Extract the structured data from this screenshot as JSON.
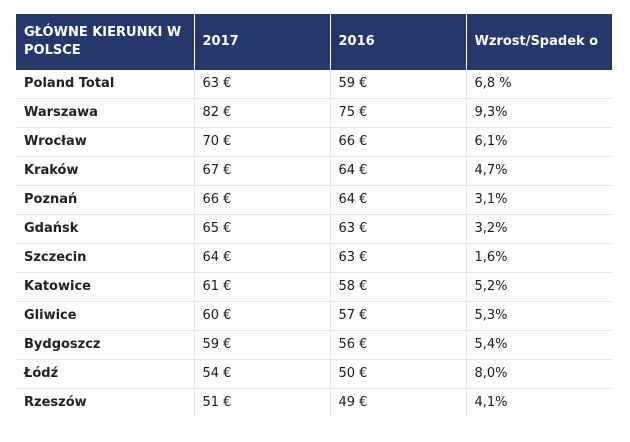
{
  "table": {
    "headers": [
      "GŁÓWNE KIERUNKI W POLSCE",
      "2017",
      "2016",
      "Wzrost/Spadek o"
    ],
    "rows": [
      [
        "Poland Total",
        "63 €",
        "59 €",
        "6,8 %"
      ],
      [
        "Warszawa",
        "82 €",
        "75 €",
        "9,3%"
      ],
      [
        "Wrocław",
        "70 €",
        "66 €",
        "6,1%"
      ],
      [
        "Kraków",
        "67 €",
        "64 €",
        "4,7%"
      ],
      [
        "Poznań",
        "66 €",
        "64 €",
        "3,1%"
      ],
      [
        "Gdańsk",
        "65 €",
        "63 €",
        "3,2%"
      ],
      [
        "Szczecin",
        "64 €",
        "63 €",
        "1,6%"
      ],
      [
        "Katowice",
        "61 €",
        "58 €",
        "5,2%"
      ],
      [
        "Gliwice",
        "60 €",
        "57 €",
        "5,3%"
      ],
      [
        "Bydgoszcz",
        "59 €",
        "56 €",
        "5,4%"
      ],
      [
        "Łódź",
        "54 €",
        "50 €",
        "8,0%"
      ],
      [
        "Rzeszów",
        "51 €",
        "49 €",
        "4,1%"
      ]
    ]
  },
  "colors": {
    "header_bg": "#26386a",
    "header_text": "#ffffff"
  }
}
